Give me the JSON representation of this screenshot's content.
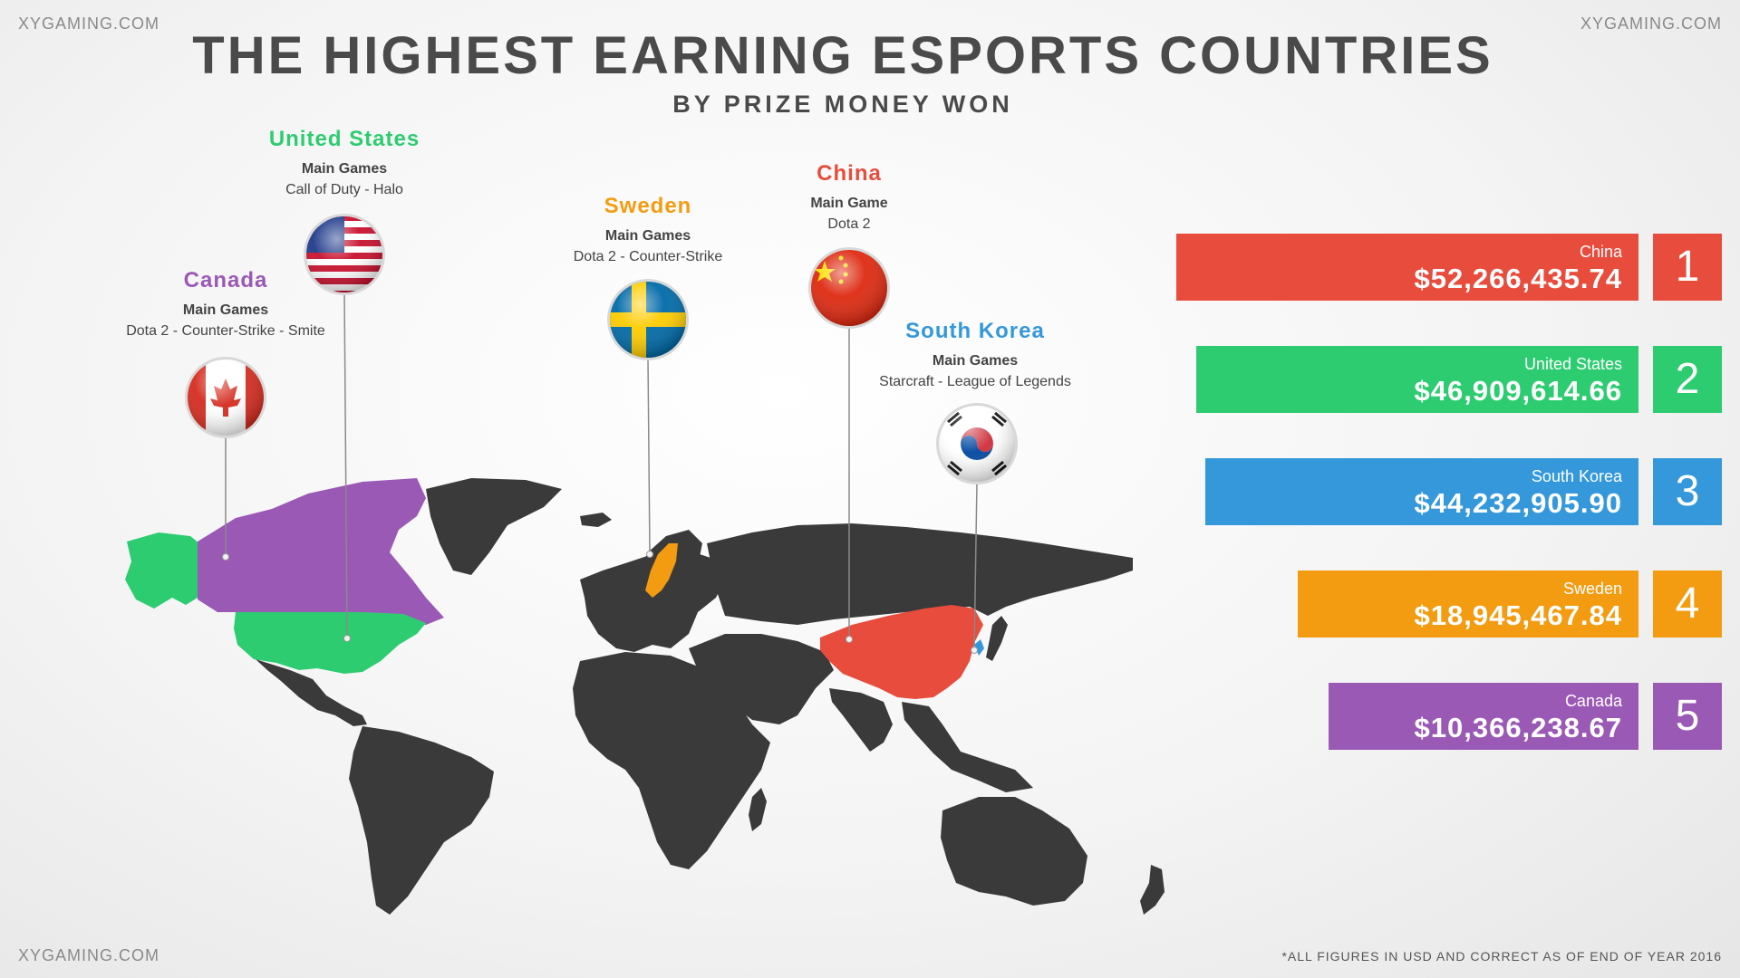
{
  "watermark": "XYGAMING.COM",
  "footnote": "*ALL FIGURES IN USD AND CORRECT AS OF END OF YEAR 2016",
  "chart_data": {
    "type": "bar",
    "title": "THE HIGHEST EARNING ESPORTS COUNTRIES",
    "subtitle": "BY PRIZE MONEY WON",
    "categories": [
      "China",
      "United States",
      "South Korea",
      "Sweden",
      "Canada"
    ],
    "values": [
      52266435.74,
      46909614.66,
      44232905.9,
      18945467.84,
      10366238.67
    ],
    "value_labels": [
      "$52,266,435.74",
      "$46,909,614.66",
      "$44,232,905.90",
      "$18,945,467.84",
      "$10,366,238.67"
    ],
    "ranks": [
      "1",
      "2",
      "3",
      "4",
      "5"
    ],
    "colors": [
      "#e84c3d",
      "#2ecc71",
      "#3498db",
      "#f39c12",
      "#9b59b6"
    ],
    "orientation": "horizontal"
  },
  "callouts": [
    {
      "country": "United States",
      "games_label": "Main Games",
      "games": "Call of Duty - Halo",
      "color": "#2ecc71",
      "flag": "us-flag-icon"
    },
    {
      "country": "Canada",
      "games_label": "Main Games",
      "games": "Dota 2 - Counter-Strike - Smite",
      "color": "#9b59b6",
      "flag": "canada-flag-icon"
    },
    {
      "country": "Sweden",
      "games_label": "Main Games",
      "games": "Dota 2 - Counter-Strike",
      "color": "#f39c12",
      "flag": "sweden-flag-icon"
    },
    {
      "country": "China",
      "games_label": "Main Game",
      "games": "Dota 2",
      "color": "#e84c3d",
      "flag": "china-flag-icon"
    },
    {
      "country": "South Korea",
      "games_label": "Main Games",
      "games": "Starcraft - League of Legends",
      "color": "#3498db",
      "flag": "south-korea-flag-icon"
    }
  ],
  "map": {
    "land_color": "#3a3a3a"
  }
}
